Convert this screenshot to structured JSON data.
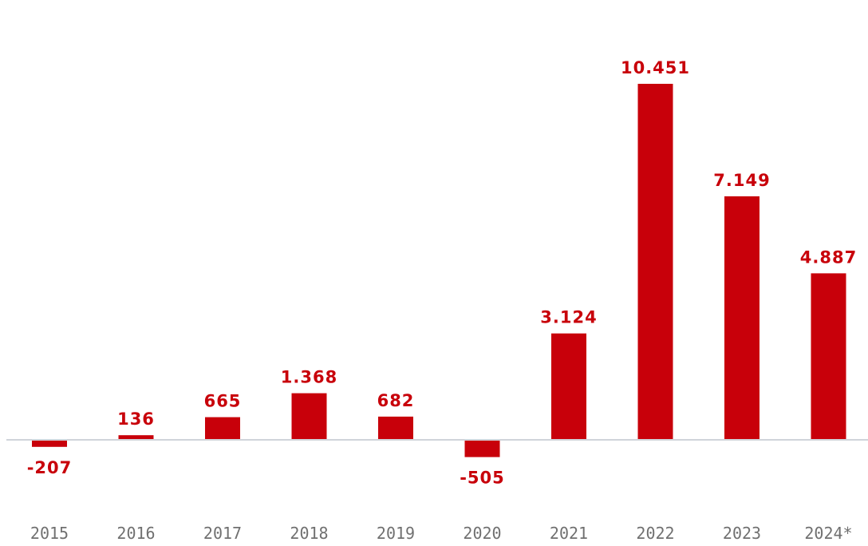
{
  "chart_data": {
    "type": "bar",
    "categories": [
      "2015",
      "2016",
      "2017",
      "2018",
      "2019",
      "2020",
      "2021",
      "2022",
      "2023",
      "2024*"
    ],
    "values": [
      -207,
      136,
      665,
      1368,
      682,
      -505,
      3124,
      10451,
      7149,
      4887
    ],
    "value_labels": [
      "-207",
      "136",
      "665",
      "1.368",
      "682",
      "-505",
      "3.124",
      "10.451",
      "7.149",
      "4.887"
    ],
    "title": "",
    "xlabel": "",
    "ylabel": "",
    "ylim": [
      -1000,
      11500
    ],
    "grid": false,
    "legend": "none",
    "colors": {
      "bar": "#c8000a",
      "value_label": "#c8000a",
      "tick_label": "#707070",
      "baseline": "#d0d4da"
    }
  }
}
